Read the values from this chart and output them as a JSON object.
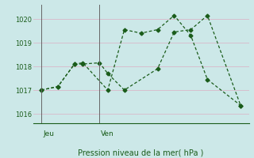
{
  "title": "Pression niveau de la mer( hPa )",
  "background_color": "#cce8e8",
  "grid_color": "#d8b8c8",
  "line_color": "#1a5c1a",
  "vline_color": "#666666",
  "ylim": [
    1015.6,
    1020.6
  ],
  "yticks": [
    1016,
    1017,
    1018,
    1019,
    1020
  ],
  "day_labels": [
    "Jeu",
    "Ven"
  ],
  "jeu_x": 0.5,
  "ven_x": 4.0,
  "vline1_x": 0.5,
  "vline2_x": 4.0,
  "xlim": [
    0,
    13
  ],
  "series1_x": [
    0.5,
    1.5,
    2.5,
    3.0,
    4.5,
    5.5,
    6.5,
    7.5,
    8.5,
    9.5,
    10.5,
    12.5
  ],
  "series1_y": [
    1017.0,
    1017.15,
    1018.1,
    1018.15,
    1017.0,
    1019.55,
    1019.4,
    1019.55,
    1020.15,
    1019.3,
    1017.45,
    1016.35
  ],
  "series2_x": [
    0.5,
    1.5,
    2.5,
    3.0,
    4.0,
    4.5,
    5.5,
    7.5,
    8.5,
    9.5,
    10.5,
    12.5
  ],
  "series2_y": [
    1017.0,
    1017.15,
    1018.1,
    1018.1,
    1018.15,
    1017.7,
    1017.0,
    1017.9,
    1019.45,
    1019.55,
    1020.15,
    1016.35
  ]
}
